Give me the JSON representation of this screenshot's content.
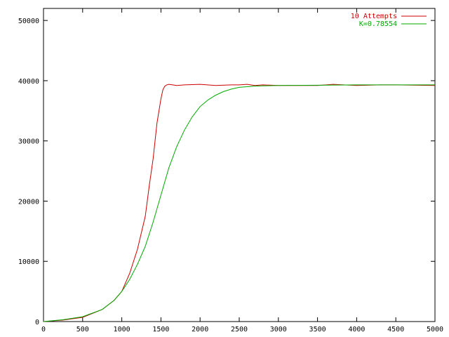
{
  "chart_data": {
    "type": "line",
    "title": "",
    "xlabel": "",
    "ylabel": "",
    "xlim": [
      0,
      5000
    ],
    "ylim": [
      0,
      52000
    ],
    "x_ticks": [
      0,
      500,
      1000,
      1500,
      2000,
      2500,
      3000,
      3500,
      4000,
      4500,
      5000
    ],
    "x_tick_labels": [
      "0",
      "500",
      "1000",
      "1500",
      "2000",
      "2500",
      "3000",
      "3500",
      "4000",
      "4500",
      "5000"
    ],
    "y_ticks": [
      0,
      10000,
      20000,
      30000,
      40000,
      50000
    ],
    "y_tick_labels": [
      "0",
      "10000",
      "20000",
      "30000",
      "40000",
      "50000"
    ],
    "grid": false,
    "legend_position": "top-right",
    "series": [
      {
        "name": "10 Attempts",
        "color": "#cc0000",
        "x": [
          0,
          250,
          500,
          750,
          900,
          1000,
          1100,
          1200,
          1300,
          1350,
          1400,
          1450,
          1500,
          1525,
          1550,
          1575,
          1600,
          1650,
          1700,
          1800,
          2000,
          2200,
          2400,
          2500,
          2600,
          2700,
          2800,
          3000,
          3500,
          3700,
          4000,
          4300,
          4500,
          5000
        ],
        "y": [
          0,
          250,
          700,
          2000,
          3500,
          5000,
          8000,
          12000,
          17500,
          22500,
          27000,
          33000,
          37000,
          38500,
          39100,
          39300,
          39400,
          39300,
          39200,
          39300,
          39400,
          39200,
          39300,
          39300,
          39400,
          39200,
          39300,
          39200,
          39200,
          39400,
          39200,
          39300,
          39300,
          39200
        ]
      },
      {
        "name": "K=0.78554",
        "color": "#00aa00",
        "x": [
          0,
          250,
          500,
          750,
          900,
          1000,
          1100,
          1200,
          1300,
          1400,
          1500,
          1600,
          1700,
          1800,
          1900,
          2000,
          2100,
          2200,
          2300,
          2400,
          2500,
          2600,
          2700,
          2800,
          3000,
          3500,
          4000,
          4500,
          5000
        ],
        "y": [
          0,
          300,
          800,
          2000,
          3500,
          5000,
          7000,
          9500,
          12500,
          16500,
          21000,
          25500,
          29000,
          31800,
          34000,
          35700,
          36800,
          37600,
          38200,
          38600,
          38900,
          39000,
          39100,
          39150,
          39200,
          39250,
          39300,
          39300,
          39300
        ]
      }
    ]
  }
}
